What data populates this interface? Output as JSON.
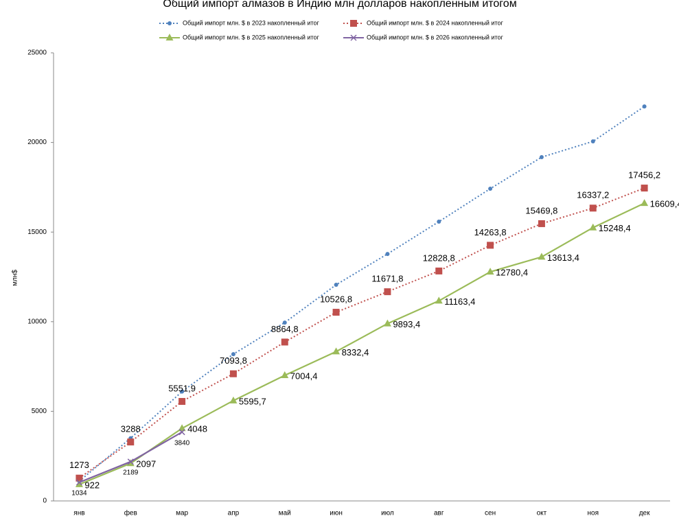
{
  "chart_data": {
    "type": "line",
    "title": "Общий импорт алмазов в Индию млн долларов накопленным итогом",
    "y_label": "млн$",
    "categories": [
      "янв",
      "фев",
      "мар",
      "апр",
      "май",
      "июн",
      "июл",
      "авг",
      "сен",
      "окт",
      "ноя",
      "дек"
    ],
    "ylim": [
      0,
      25000
    ],
    "yticks": [
      0,
      5000,
      10000,
      15000,
      20000,
      25000
    ],
    "grid": false,
    "series": [
      {
        "name": "Общий импорт млн. $ в 2023 накопленный итог",
        "color": "#4f81bd",
        "dash": "dotted",
        "marker": "circle",
        "values": [
          1100,
          3500,
          6100,
          8190,
          9950,
          12060,
          13780,
          15580,
          17420,
          19180,
          20060,
          22010
        ]
      },
      {
        "name": "Общий импорт млн. $ в 2024 накопленный итог",
        "color": "#c0504d",
        "dash": "dotted",
        "marker": "square",
        "label_pos": "above",
        "values": [
          1273,
          3288,
          5551.9,
          7093.8,
          8864.8,
          10526.8,
          11671.8,
          12828.8,
          14263.8,
          15469.8,
          16337.2,
          17456.2
        ],
        "value_labels": [
          "1273",
          "3288",
          "5551,9",
          "7093,8",
          "8864,8",
          "10526,8",
          "11671,8",
          "12828,8",
          "14263,8",
          "15469,8",
          "16337,2",
          "17456,2"
        ]
      },
      {
        "name": "Общий импорт млн. $ в 2025 накопленный итог",
        "color": "#9bbb59",
        "dash": "solid",
        "marker": "triangle",
        "label_pos": "right",
        "values": [
          922,
          2097,
          4048,
          5595.7,
          7004.4,
          8332.4,
          9893.4,
          11163.4,
          12780.4,
          13613.4,
          15248.4,
          16609.4
        ],
        "value_labels": [
          "922",
          "2097",
          "4048",
          "5595,7",
          "7004,4",
          "8332,4",
          "9893,4",
          "11163,4",
          "12780,4",
          "13613,4",
          "15248,4",
          "16609,4"
        ]
      },
      {
        "name": "Общий импорт млн. $ в 2026 накопленный итог",
        "color": "#8064a2",
        "dash": "solid",
        "marker": "x",
        "label_pos": "below",
        "values": [
          1034,
          2189,
          3840,
          null,
          null,
          null,
          null,
          null,
          null,
          null,
          null,
          null
        ],
        "value_labels": [
          "1034",
          "2189",
          "3840",
          null,
          null,
          null,
          null,
          null,
          null,
          null,
          null,
          null
        ]
      }
    ]
  }
}
